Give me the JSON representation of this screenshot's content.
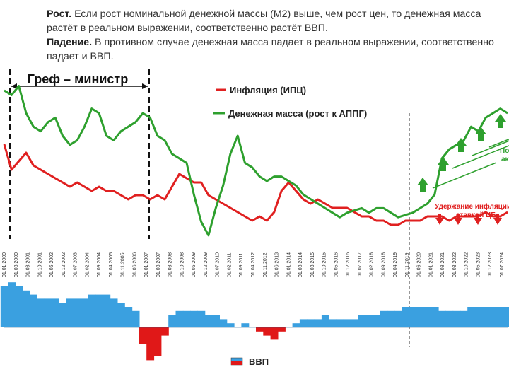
{
  "intro": {
    "growth_title": "Рост.",
    "growth_text": " Если рост номинальной денежной массы (М2) выше, чем рост цен,  то денежная масса растёт в реальном выражении, соответственно растёт ВВП.",
    "fall_title": "Падение.",
    "fall_text": " В противном случае денежная масса падает в реальном выражении, соответственно падает и ВВП."
  },
  "chart_data": {
    "type": "line",
    "title": "",
    "legend": [
      {
        "name": "Инфляция (ИПЦ)",
        "color": "#e02020"
      },
      {
        "name": "Денежная масса (рост к АППГ)",
        "color": "#2ea02e"
      }
    ],
    "gref_label": "Греф – министр",
    "ticks": [
      "01.01.2000",
      "01.08.2000",
      "01.03.2001",
      "01.10.2001",
      "01.05.2002",
      "01.12.2002",
      "01.07.2003",
      "01.02.2004",
      "01.09.2004",
      "01.04.2005",
      "01.11.2005",
      "01.06.2006",
      "01.01.2007",
      "01.08.2007",
      "01.03.2008",
      "01.10.2008",
      "01.05.2009",
      "01.12.2009",
      "01.07.2010",
      "01.02.2011",
      "01.09.2011",
      "01.04.2012",
      "01.11.2012",
      "01.06.2013",
      "01.01.2014",
      "01.08.2014",
      "01.03.2015",
      "01.10.2015",
      "01.05.2016",
      "01.12.2016",
      "01.07.2017",
      "01.02.2018",
      "01.09.2018",
      "01.04.2019",
      "01.11.2019",
      "01.06.2020",
      "01.01.2021",
      "01.08.2021",
      "01.03.2022",
      "01.10.2022",
      "01.05.2023",
      "01.12.2023",
      "01.07.2024"
    ],
    "inflation": [
      21,
      15,
      17,
      19,
      16,
      15,
      14,
      13,
      12,
      11,
      12,
      11,
      10,
      11,
      10,
      10,
      9,
      8,
      9,
      9,
      8,
      9,
      8,
      11,
      14,
      13,
      12,
      12,
      9,
      8,
      7,
      6,
      5,
      4,
      3,
      4,
      3,
      5,
      10,
      12,
      10,
      8,
      7,
      8,
      7,
      6,
      6,
      6,
      5,
      4,
      4,
      3,
      3,
      2,
      2,
      3,
      3,
      3,
      4,
      4,
      4,
      3,
      4,
      4,
      4,
      4,
      5,
      4,
      4,
      5
    ],
    "money": [
      60,
      58,
      62,
      50,
      44,
      42,
      46,
      48,
      40,
      36,
      38,
      44,
      52,
      50,
      40,
      38,
      42,
      44,
      46,
      50,
      48,
      40,
      38,
      32,
      30,
      28,
      14,
      2,
      -4,
      8,
      18,
      32,
      40,
      28,
      26,
      22,
      20,
      22,
      22,
      20,
      18,
      14,
      12,
      10,
      8,
      6,
      4,
      6,
      7,
      8,
      6,
      8,
      8,
      6,
      4,
      5,
      6,
      8,
      10,
      14,
      30,
      34,
      36,
      38,
      44,
      42,
      48,
      50,
      52,
      50
    ],
    "gdp": [
      10,
      11,
      10,
      9,
      8,
      7,
      7,
      7,
      6,
      7,
      7,
      7,
      8,
      8,
      8,
      7,
      6,
      5,
      4,
      -4,
      -8,
      -7,
      -2,
      3,
      4,
      4,
      4,
      4,
      3,
      3,
      2,
      1,
      0,
      1,
      0,
      -1,
      -2,
      -3,
      -1,
      0,
      1,
      2,
      2,
      2,
      3,
      2,
      2,
      2,
      2,
      3,
      3,
      3,
      4,
      4,
      4,
      5,
      5,
      5,
      5,
      5,
      4,
      4,
      4,
      4,
      5,
      5,
      5,
      5,
      5,
      5
    ],
    "gdp_legend": "ВВП",
    "annotations": {
      "hold": "Удержание инфляции ставкой ЦБ",
      "right_label_top": "По",
      "right_label_bottom": "ак"
    }
  }
}
